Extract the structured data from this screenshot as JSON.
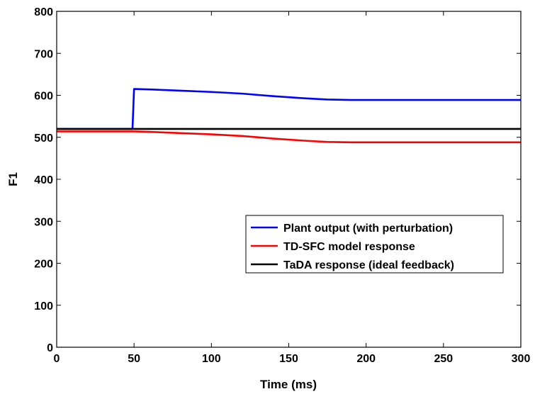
{
  "chart_data": {
    "type": "line",
    "title": "",
    "xlabel": "Time (ms)",
    "ylabel": "F1",
    "xlim": [
      0,
      300
    ],
    "ylim": [
      0,
      800
    ],
    "xticks": [
      0,
      50,
      100,
      150,
      200,
      250,
      300
    ],
    "yticks": [
      0,
      100,
      200,
      300,
      400,
      500,
      600,
      700,
      800
    ],
    "grid": false,
    "legend_position": "center-right",
    "series": [
      {
        "name": "Plant output (with perturbation)",
        "color": "#0000ff",
        "x": [
          0,
          49,
          50,
          60,
          80,
          100,
          120,
          140,
          160,
          175,
          190,
          200,
          250,
          300
        ],
        "y": [
          520,
          520,
          615,
          614,
          611,
          608,
          604,
          598,
          593,
          590,
          589,
          589,
          589,
          589
        ]
      },
      {
        "name": "TD-SFC model response",
        "color": "#ff0000",
        "x": [
          0,
          50,
          60,
          80,
          100,
          120,
          140,
          160,
          175,
          190,
          200,
          250,
          300
        ],
        "y": [
          514,
          514,
          513,
          510,
          507,
          503,
          497,
          492,
          489,
          488,
          488,
          488,
          488
        ]
      },
      {
        "name": "TaDA response (ideal feedback)",
        "color": "#000000",
        "x": [
          0,
          300
        ],
        "y": [
          520,
          520
        ]
      }
    ]
  }
}
